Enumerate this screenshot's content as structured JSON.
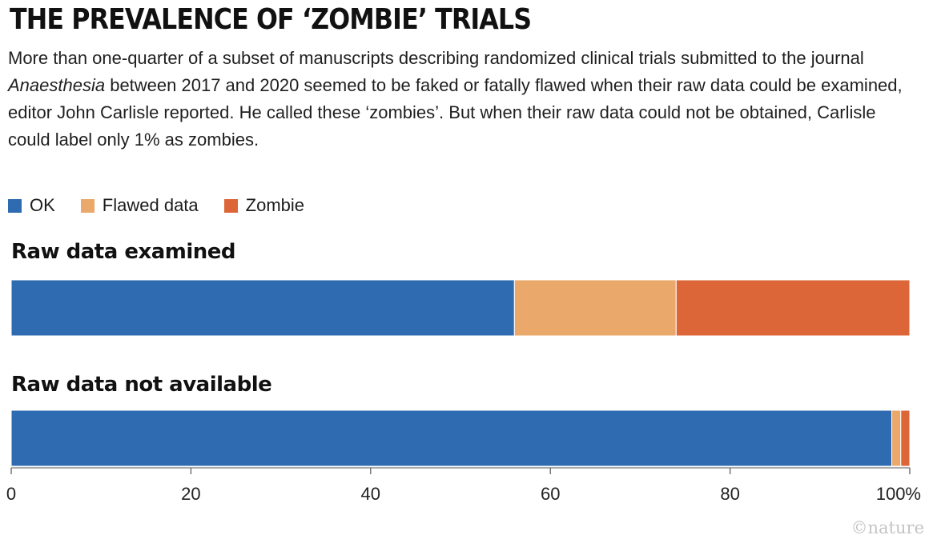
{
  "title": "THE PREVALENCE OF ‘ZOMBIE’ TRIALS",
  "subtitle": {
    "before_italic": "More than one-quarter of a subset of manuscripts describing randomized clinical trials submitted to the journal ",
    "italic": "Anaesthesia",
    "after_italic": " between 2017 and 2020 seemed to be faked or fatally flawed when their raw data could be examined, editor John Carlisle reported. He called these ‘zombies’. But when their raw data could not be obtained, Carlisle could label only 1% as zombies."
  },
  "legend": [
    {
      "label": "OK",
      "color": "#2e6bb0"
    },
    {
      "label": "Flawed data",
      "color": "#eaa86a"
    },
    {
      "label": "Zombie",
      "color": "#dc6637"
    }
  ],
  "credit": "©nature",
  "chart_data": {
    "type": "bar",
    "orientation": "horizontal-stacked",
    "categories": [
      "Raw data examined",
      "Raw data not available"
    ],
    "series": [
      {
        "name": "OK",
        "values": [
          56,
          98
        ],
        "color": "#2e6bb0"
      },
      {
        "name": "Flawed data",
        "values": [
          18,
          1
        ],
        "color": "#eaa86a"
      },
      {
        "name": "Zombie",
        "values": [
          26,
          1
        ],
        "color": "#dc6637"
      }
    ],
    "xlim": [
      0,
      100
    ],
    "xticks": [
      0,
      20,
      40,
      60,
      80,
      100
    ],
    "xtick_labels": [
      "0",
      "20",
      "40",
      "60",
      "80",
      "100%"
    ],
    "grid": false,
    "legend_position": "top-left"
  }
}
